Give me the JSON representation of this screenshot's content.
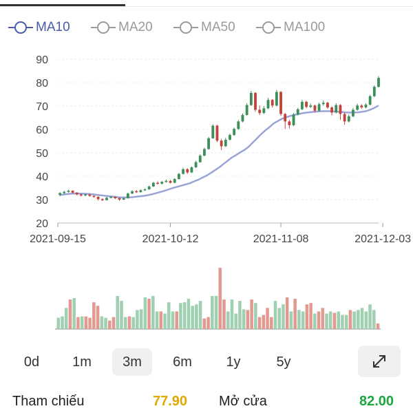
{
  "legend": [
    {
      "label": "MA10",
      "color": "#4a5aa8",
      "active": true
    },
    {
      "label": "MA20",
      "color": "#9a9a9a",
      "active": false
    },
    {
      "label": "MA50",
      "color": "#9a9a9a",
      "active": false
    },
    {
      "label": "MA100",
      "color": "#9a9a9a",
      "active": false
    }
  ],
  "chart_data": {
    "type": "candlestick",
    "title": "",
    "ylim": [
      20,
      92
    ],
    "y_ticks": [
      "90",
      "80",
      "70",
      "60",
      "50",
      "40",
      "30",
      "20"
    ],
    "x_ticks": [
      "2021-09-15",
      "2021-10-12",
      "2021-11-08",
      "2021-12-03"
    ],
    "colors": {
      "up": "#3d8f5a",
      "down": "#c0443a",
      "ma": "#9aa3d6",
      "vol_up": "#9fd0b1",
      "vol_down": "#e29a90"
    },
    "candles": [
      {
        "o": 32.0,
        "c": 32.8,
        "h": 33.2,
        "l": 31.5
      },
      {
        "o": 32.8,
        "c": 33.3,
        "h": 33.8,
        "l": 32.4
      },
      {
        "o": 33.3,
        "c": 33.8,
        "h": 34.2,
        "l": 33.0
      },
      {
        "o": 33.8,
        "c": 33.0,
        "h": 34.0,
        "l": 32.6
      },
      {
        "o": 33.0,
        "c": 32.2,
        "h": 33.2,
        "l": 31.8
      },
      {
        "o": 32.2,
        "c": 31.8,
        "h": 32.6,
        "l": 31.3
      },
      {
        "o": 31.8,
        "c": 32.2,
        "h": 32.6,
        "l": 31.4
      },
      {
        "o": 32.2,
        "c": 31.6,
        "h": 32.4,
        "l": 31.2
      },
      {
        "o": 31.6,
        "c": 31.2,
        "h": 31.9,
        "l": 30.8
      },
      {
        "o": 31.2,
        "c": 30.2,
        "h": 31.4,
        "l": 29.6
      },
      {
        "o": 30.2,
        "c": 29.8,
        "h": 30.6,
        "l": 29.4
      },
      {
        "o": 29.8,
        "c": 30.8,
        "h": 31.2,
        "l": 29.6
      },
      {
        "o": 30.8,
        "c": 31.2,
        "h": 31.6,
        "l": 30.5
      },
      {
        "o": 31.2,
        "c": 30.6,
        "h": 31.4,
        "l": 30.2
      },
      {
        "o": 30.6,
        "c": 30.0,
        "h": 30.9,
        "l": 29.5
      },
      {
        "o": 30.0,
        "c": 30.6,
        "h": 31.0,
        "l": 29.8
      },
      {
        "o": 30.6,
        "c": 32.6,
        "h": 33.0,
        "l": 30.4
      },
      {
        "o": 32.6,
        "c": 33.6,
        "h": 34.0,
        "l": 32.3
      },
      {
        "o": 33.6,
        "c": 33.2,
        "h": 34.1,
        "l": 32.8
      },
      {
        "o": 33.2,
        "c": 34.0,
        "h": 34.4,
        "l": 33.0
      },
      {
        "o": 34.0,
        "c": 34.4,
        "h": 34.8,
        "l": 33.7
      },
      {
        "o": 34.4,
        "c": 35.6,
        "h": 36.0,
        "l": 34.2
      },
      {
        "o": 35.6,
        "c": 37.2,
        "h": 37.6,
        "l": 35.4
      },
      {
        "o": 37.2,
        "c": 36.8,
        "h": 37.8,
        "l": 36.4
      },
      {
        "o": 36.8,
        "c": 37.6,
        "h": 38.0,
        "l": 36.5
      },
      {
        "o": 37.6,
        "c": 38.0,
        "h": 38.6,
        "l": 37.2
      },
      {
        "o": 38.0,
        "c": 37.2,
        "h": 38.4,
        "l": 36.9
      },
      {
        "o": 37.2,
        "c": 38.8,
        "h": 39.2,
        "l": 37.0
      },
      {
        "o": 38.8,
        "c": 41.0,
        "h": 41.4,
        "l": 38.6
      },
      {
        "o": 41.0,
        "c": 43.0,
        "h": 43.6,
        "l": 40.7
      },
      {
        "o": 43.0,
        "c": 41.6,
        "h": 43.4,
        "l": 41.0
      },
      {
        "o": 41.6,
        "c": 43.8,
        "h": 44.2,
        "l": 41.4
      },
      {
        "o": 43.8,
        "c": 46.0,
        "h": 46.6,
        "l": 43.5
      },
      {
        "o": 46.0,
        "c": 48.8,
        "h": 49.4,
        "l": 45.8
      },
      {
        "o": 48.8,
        "c": 51.6,
        "h": 52.2,
        "l": 48.5
      },
      {
        "o": 51.6,
        "c": 56.2,
        "h": 56.8,
        "l": 51.3
      },
      {
        "o": 56.2,
        "c": 61.6,
        "h": 62.2,
        "l": 56.0
      },
      {
        "o": 61.6,
        "c": 55.2,
        "h": 62.0,
        "l": 54.6
      },
      {
        "o": 55.2,
        "c": 52.8,
        "h": 56.0,
        "l": 51.2
      },
      {
        "o": 52.8,
        "c": 55.6,
        "h": 56.4,
        "l": 52.5
      },
      {
        "o": 55.6,
        "c": 57.6,
        "h": 58.2,
        "l": 55.2
      },
      {
        "o": 57.6,
        "c": 60.2,
        "h": 60.8,
        "l": 57.3
      },
      {
        "o": 60.2,
        "c": 63.4,
        "h": 64.0,
        "l": 59.8
      },
      {
        "o": 63.4,
        "c": 66.2,
        "h": 66.8,
        "l": 63.0
      },
      {
        "o": 66.2,
        "c": 70.4,
        "h": 71.2,
        "l": 65.8
      },
      {
        "o": 70.4,
        "c": 75.6,
        "h": 76.4,
        "l": 70.0
      },
      {
        "o": 75.6,
        "c": 68.4,
        "h": 76.0,
        "l": 67.6
      },
      {
        "o": 68.4,
        "c": 67.0,
        "h": 70.2,
        "l": 66.2
      },
      {
        "o": 67.0,
        "c": 69.0,
        "h": 70.0,
        "l": 66.6
      },
      {
        "o": 69.0,
        "c": 72.6,
        "h": 73.4,
        "l": 68.6
      },
      {
        "o": 72.6,
        "c": 70.2,
        "h": 73.0,
        "l": 69.4
      },
      {
        "o": 70.2,
        "c": 76.0,
        "h": 76.8,
        "l": 69.8
      },
      {
        "o": 76.0,
        "c": 66.6,
        "h": 76.4,
        "l": 65.8
      },
      {
        "o": 66.6,
        "c": 63.4,
        "h": 67.0,
        "l": 60.2
      },
      {
        "o": 63.4,
        "c": 61.8,
        "h": 64.0,
        "l": 60.4
      },
      {
        "o": 61.8,
        "c": 66.4,
        "h": 67.0,
        "l": 61.4
      },
      {
        "o": 66.4,
        "c": 68.6,
        "h": 69.2,
        "l": 66.0
      },
      {
        "o": 68.6,
        "c": 71.8,
        "h": 72.6,
        "l": 68.2
      },
      {
        "o": 71.8,
        "c": 69.6,
        "h": 72.2,
        "l": 69.0
      },
      {
        "o": 69.6,
        "c": 70.2,
        "h": 71.0,
        "l": 69.2
      },
      {
        "o": 70.2,
        "c": 68.0,
        "h": 70.6,
        "l": 67.2
      },
      {
        "o": 68.0,
        "c": 70.8,
        "h": 71.4,
        "l": 67.6
      },
      {
        "o": 70.8,
        "c": 71.4,
        "h": 72.4,
        "l": 70.2
      },
      {
        "o": 71.4,
        "c": 69.4,
        "h": 71.8,
        "l": 68.8
      },
      {
        "o": 69.4,
        "c": 67.2,
        "h": 69.8,
        "l": 66.0
      },
      {
        "o": 67.2,
        "c": 70.4,
        "h": 71.2,
        "l": 66.8
      },
      {
        "o": 70.4,
        "c": 66.6,
        "h": 70.8,
        "l": 64.0
      },
      {
        "o": 66.6,
        "c": 63.4,
        "h": 67.2,
        "l": 62.0
      },
      {
        "o": 63.4,
        "c": 65.6,
        "h": 66.4,
        "l": 63.0
      },
      {
        "o": 65.6,
        "c": 68.4,
        "h": 69.2,
        "l": 65.2
      },
      {
        "o": 68.4,
        "c": 70.2,
        "h": 71.0,
        "l": 68.0
      },
      {
        "o": 70.2,
        "c": 69.4,
        "h": 70.8,
        "l": 68.8
      },
      {
        "o": 69.4,
        "c": 70.6,
        "h": 71.2,
        "l": 69.0
      },
      {
        "o": 70.6,
        "c": 74.2,
        "h": 74.8,
        "l": 70.2
      },
      {
        "o": 74.2,
        "c": 78.2,
        "h": 78.8,
        "l": 73.8
      },
      {
        "o": 78.2,
        "c": 82.0,
        "h": 82.8,
        "l": 77.9
      }
    ],
    "ma10": [
      32.0,
      32.2,
      32.4,
      32.6,
      32.6,
      32.6,
      32.5,
      32.4,
      32.2,
      32.0,
      31.8,
      31.6,
      31.4,
      31.2,
      31.0,
      30.9,
      30.9,
      31.0,
      31.2,
      31.4,
      31.6,
      31.9,
      32.3,
      32.8,
      33.3,
      33.8,
      34.4,
      35.0,
      35.5,
      36.0,
      36.5,
      37.0,
      37.8,
      38.5,
      39.4,
      40.3,
      41.4,
      42.6,
      43.8,
      45.2,
      46.6,
      48.0,
      49.0,
      50.2,
      51.2,
      52.6,
      54.4,
      56.2,
      58.0,
      59.6,
      61.0,
      62.6,
      63.6,
      64.6,
      65.2,
      65.8,
      66.2,
      66.6,
      67.0,
      67.2,
      67.4,
      67.6,
      67.7,
      67.8,
      67.8,
      67.7,
      67.6,
      67.5,
      67.3,
      67.2,
      67.2,
      67.3,
      67.5,
      67.8,
      68.4,
      69.2,
      70.2
    ],
    "volume": [
      16,
      18,
      30,
      42,
      44,
      17,
      18,
      18,
      16,
      38,
      33,
      18,
      16,
      12,
      17,
      47,
      40,
      17,
      18,
      17,
      27,
      28,
      45,
      43,
      47,
      25,
      25,
      22,
      38,
      25,
      25,
      37,
      38,
      43,
      33,
      35,
      40,
      15,
      17,
      47,
      47,
      87,
      42,
      25,
      42,
      22,
      40,
      28,
      27,
      42,
      37,
      17,
      20,
      30,
      17,
      40,
      30,
      35,
      45,
      25,
      43,
      27,
      25,
      35,
      37,
      22,
      25,
      30,
      22,
      25,
      23,
      25,
      20,
      20,
      27,
      25,
      27,
      30,
      25,
      35,
      27,
      8
    ],
    "volume_up": [
      true,
      true,
      true,
      false,
      true,
      false,
      true,
      false,
      false,
      false,
      false,
      true,
      true,
      false,
      false,
      true,
      true,
      true,
      false,
      true,
      true,
      true,
      true,
      false,
      true,
      true,
      false,
      true,
      true,
      true,
      false,
      true,
      true,
      true,
      true,
      true,
      true,
      false,
      false,
      true,
      true,
      false,
      false,
      true,
      true,
      true,
      true,
      true,
      false,
      false,
      true,
      false,
      false,
      false,
      false,
      true,
      true,
      true,
      false,
      true,
      false,
      true,
      true,
      false,
      false,
      true,
      false,
      false,
      true,
      true,
      false,
      true,
      true,
      true,
      false,
      true,
      true,
      true,
      true,
      true,
      true,
      false
    ]
  },
  "periods": [
    "0d",
    "1m",
    "3m",
    "6m",
    "1y",
    "5y"
  ],
  "selected_period": "3m",
  "expand_icon": "expand-arrows-icon",
  "ref": {
    "ref_label": "Tham chiếu",
    "ref_value": "77.90",
    "ref_color": "#e0a800",
    "open_label": "Mở cửa",
    "open_value": "82.00",
    "open_color": "#1aa640"
  }
}
